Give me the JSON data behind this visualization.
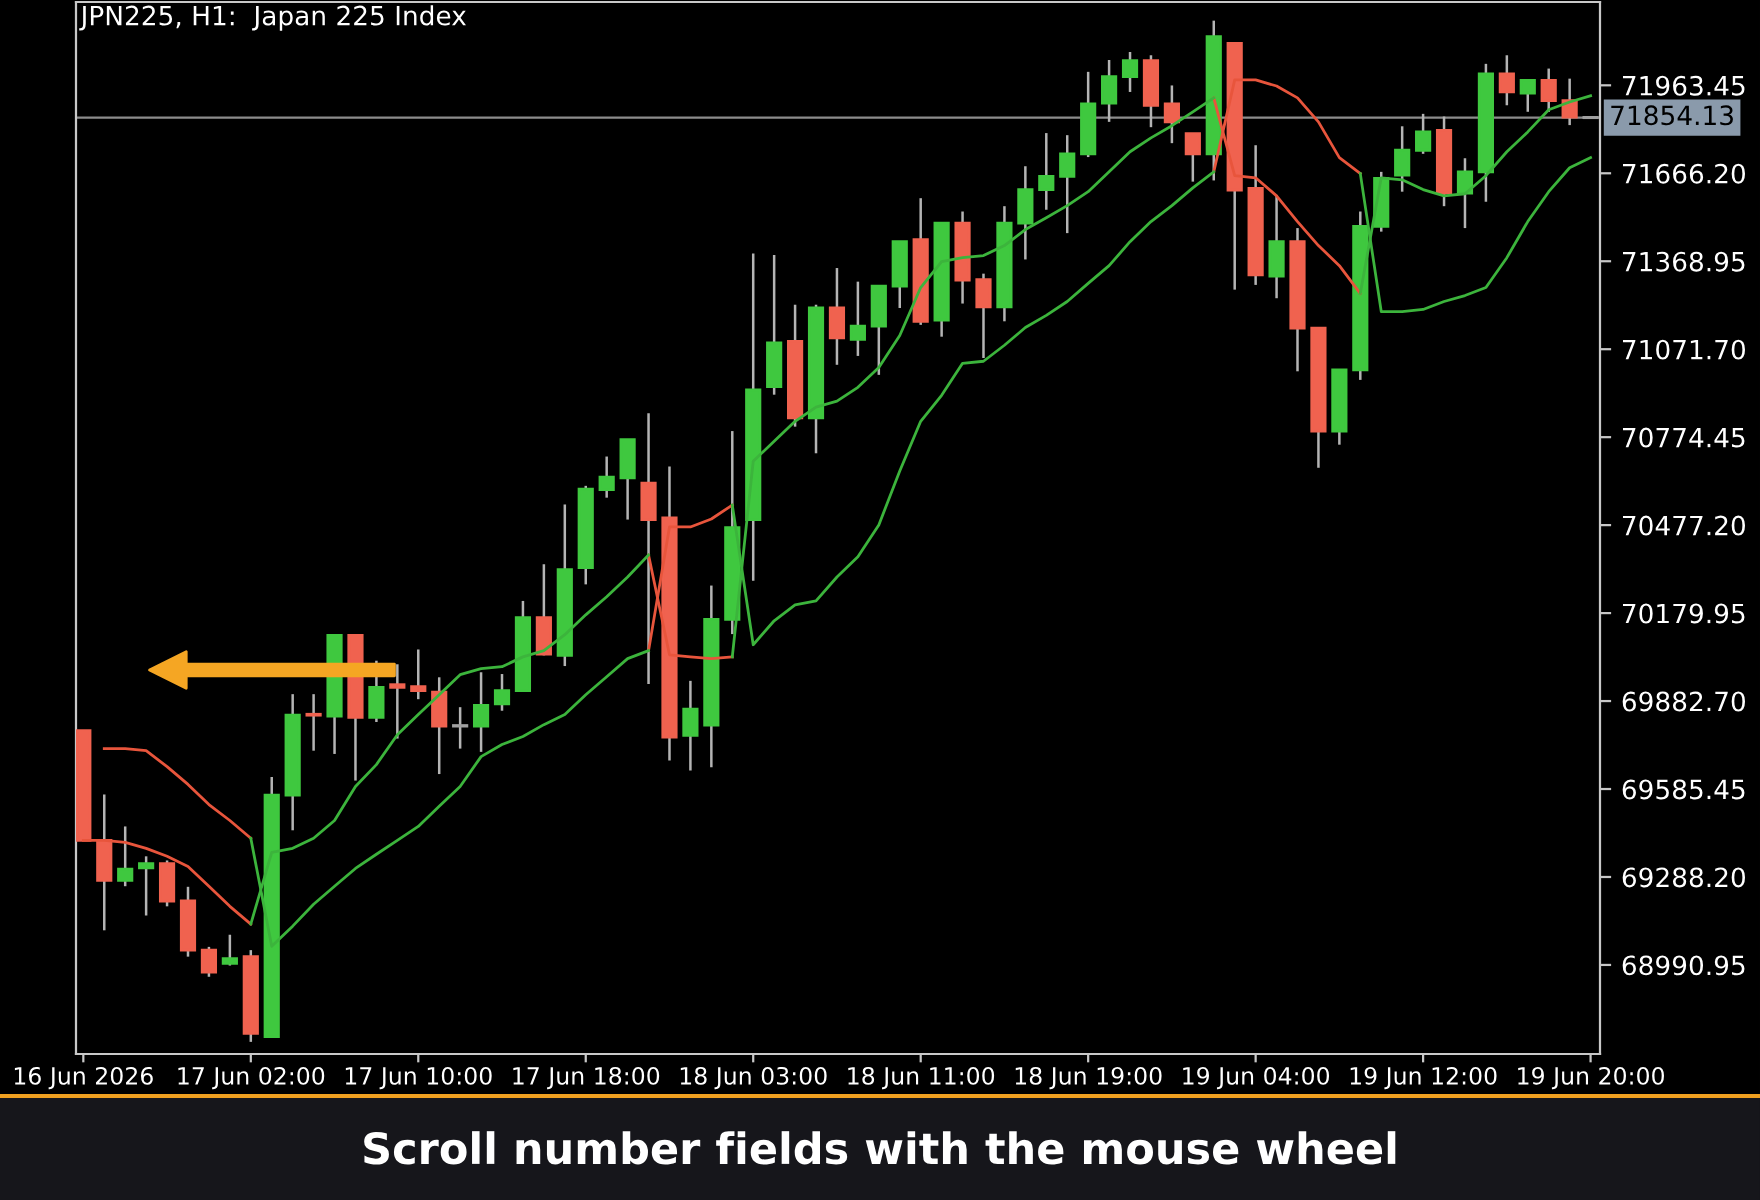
{
  "chart_data": {
    "type": "candlestick",
    "title": "JPN225, H1:  Japan 225 Index",
    "categories": [
      "16 Jun 2026",
      null,
      null,
      null,
      null,
      null,
      null,
      null,
      "17 Jun 02:00",
      null,
      null,
      null,
      null,
      null,
      null,
      null,
      "17 Jun 10:00",
      null,
      null,
      null,
      null,
      null,
      null,
      null,
      "17 Jun 18:00",
      null,
      null,
      null,
      null,
      null,
      null,
      null,
      "18 Jun 03:00",
      null,
      null,
      null,
      null,
      null,
      null,
      null,
      "18 Jun 11:00",
      null,
      null,
      null,
      null,
      null,
      null,
      null,
      "18 Jun 19:00",
      null,
      null,
      null,
      null,
      null,
      null,
      null,
      "19 Jun 04:00",
      null,
      null,
      null,
      null,
      null,
      null,
      null,
      "19 Jun 12:00",
      null,
      null,
      null,
      null,
      null,
      null,
      null,
      "19 Jun 20:00"
    ],
    "ohlc": [
      [
        69783,
        69783,
        69412,
        69412
      ],
      [
        69412,
        69567,
        69108,
        69277
      ],
      [
        69277,
        69459,
        69257,
        69315
      ],
      [
        69319,
        69358,
        69158,
        69333
      ],
      [
        69333,
        69344,
        69189,
        69207
      ],
      [
        69207,
        69255,
        69019,
        69041
      ],
      [
        69041,
        69052,
        68951,
        68967
      ],
      [
        68996,
        69093,
        68989,
        69012
      ],
      [
        69019,
        69041,
        68731,
        68760
      ],
      [
        68749,
        69626,
        68749,
        69565
      ],
      [
        69565,
        69906,
        69446,
        69835
      ],
      [
        69838,
        69906,
        69715,
        69835
      ],
      [
        69832,
        70109,
        69704,
        70105
      ],
      [
        70105,
        70109,
        69614,
        69828
      ],
      [
        69828,
        70019,
        69812,
        69929
      ],
      [
        69938,
        70007,
        69756,
        69929
      ],
      [
        69931,
        70057,
        69889,
        69918
      ],
      [
        69913,
        69963,
        69636,
        69798
      ],
      [
        69798,
        69862,
        69722,
        69800
      ],
      [
        69798,
        69980,
        69711,
        69868
      ],
      [
        69873,
        69974,
        69850,
        69918
      ],
      [
        69918,
        70221,
        69918,
        70165
      ],
      [
        70165,
        70345,
        70037,
        70041
      ],
      [
        70037,
        70547,
        70001,
        70327
      ],
      [
        70334,
        70610,
        70277,
        70599
      ],
      [
        70597,
        70709,
        70570,
        70639
      ],
      [
        70637,
        70768,
        70496,
        70766
      ],
      [
        70619,
        70855,
        69940,
        70496
      ],
      [
        70502,
        70675,
        69682,
        69761
      ],
      [
        69767,
        69951,
        69648,
        69855
      ],
      [
        69801,
        70273,
        69659,
        70159
      ],
      [
        70159,
        70795,
        70109,
        70469
      ],
      [
        70496,
        71395,
        70289,
        70934
      ],
      [
        70945,
        71390,
        70918,
        71093
      ],
      [
        71098,
        71222,
        70810,
        70840
      ],
      [
        70840,
        71222,
        70720,
        71211
      ],
      [
        71211,
        71346,
        71019,
        71110
      ],
      [
        71105,
        71300,
        71049,
        71150
      ],
      [
        71150,
        71287,
        70985,
        71285
      ],
      [
        71285,
        71437,
        71211,
        71435
      ],
      [
        71442,
        71582,
        71154,
        71166
      ],
      [
        71170,
        71500,
        71114,
        71498
      ],
      [
        71498,
        71537,
        71226,
        71305
      ],
      [
        71307,
        71327,
        71042,
        71215
      ],
      [
        71215,
        71555,
        71166,
        71498
      ],
      [
        71498,
        71690,
        71375,
        71611
      ],
      [
        71611,
        71802,
        71543,
        71656
      ],
      [
        71656,
        71795,
        71464,
        71732
      ],
      [
        71732,
        72009,
        71721,
        71901
      ],
      [
        71903,
        72049,
        71840,
        71993
      ],
      [
        71993,
        72076,
        71941,
        72047
      ],
      [
        72047,
        72065,
        71822,
        71896
      ],
      [
        71901,
        71963,
        71768,
        71840
      ],
      [
        71800,
        71802,
        71638,
        71732
      ],
      [
        71732,
        72182,
        71642,
        72128
      ],
      [
        72105,
        72107,
        71273,
        71609
      ],
      [
        71615,
        71761,
        71289,
        71323
      ],
      [
        71319,
        71593,
        71244,
        71435
      ],
      [
        71435,
        71481,
        70997,
        71143
      ],
      [
        71143,
        71145,
        70671,
        70795
      ],
      [
        70795,
        71004,
        70749,
        71002
      ],
      [
        71002,
        71537,
        70968,
        71487
      ],
      [
        71487,
        71671,
        71469,
        71649
      ],
      [
        71660,
        71825,
        71604,
        71744
      ],
      [
        71744,
        71867,
        71732,
        71806
      ],
      [
        71811,
        71858,
        71555,
        71599
      ],
      [
        71599,
        71717,
        71481,
        71671
      ],
      [
        71671,
        72036,
        71570,
        72002
      ],
      [
        72002,
        72065,
        71896,
        71941
      ],
      [
        71937,
        71982,
        71874,
        71980
      ],
      [
        71980,
        72020,
        71874,
        71912
      ],
      [
        71912,
        71986,
        71829,
        71856
      ],
      [
        71855,
        71856,
        71854.13,
        71854.13
      ]
    ],
    "colors": [
      "#f0624f",
      "#f0624f",
      "#3fc83f",
      "#3fc83f",
      "#f0624f",
      "#f0624f",
      "#f0624f",
      "#3fc83f",
      "#f0624f",
      "#3fc83f",
      "#3fc83f",
      "#f0624f",
      "#3fc83f",
      "#f0624f",
      "#3fc83f",
      "#f0624f",
      "#f0624f",
      "#f0624f",
      "#a0a0a0",
      "#3fc83f",
      "#3fc83f",
      "#3fc83f",
      "#f0624f",
      "#3fc83f",
      "#3fc83f",
      "#3fc83f",
      "#3fc83f",
      "#f0624f",
      "#f0624f",
      "#3fc83f",
      "#3fc83f",
      "#3fc83f",
      "#3fc83f",
      "#3fc83f",
      "#f0624f",
      "#3fc83f",
      "#f0624f",
      "#3fc83f",
      "#3fc83f",
      "#3fc83f",
      "#f0624f",
      "#3fc83f",
      "#f0624f",
      "#f0624f",
      "#3fc83f",
      "#3fc83f",
      "#3fc83f",
      "#3fc83f",
      "#3fc83f",
      "#3fc83f",
      "#3fc83f",
      "#f0624f",
      "#f0624f",
      "#f0624f",
      "#3fc83f",
      "#f0624f",
      "#f0624f",
      "#3fc83f",
      "#f0624f",
      "#f0624f",
      "#3fc83f",
      "#3fc83f",
      "#3fc83f",
      "#3fc83f",
      "#3fc83f",
      "#f0624f",
      "#3fc83f",
      "#3fc83f",
      "#f0624f",
      "#3fc83f",
      "#f0624f",
      "#f0624f",
      "#a0a0a0"
    ],
    "series": [
      {
        "type": "line",
        "color": "#e8553c",
        "values": [
          null,
          69722,
          69722,
          69715,
          69661,
          69601,
          69533,
          69479,
          69419,
          null,
          null,
          null,
          null,
          null,
          null,
          null,
          null,
          null,
          null,
          null,
          null,
          null,
          null,
          null,
          null,
          null,
          null,
          70053,
          70471,
          70471,
          70498,
          70545,
          null,
          null,
          null,
          null,
          null,
          null,
          null,
          null,
          null,
          null,
          null,
          null,
          null,
          null,
          null,
          null,
          null,
          null,
          null,
          null,
          null,
          null,
          71671,
          71982,
          71982,
          71961,
          71921,
          71840,
          71719,
          71665,
          null,
          null,
          null,
          null,
          null,
          null,
          null,
          null,
          null,
          null,
          null
        ]
      },
      {
        "type": "line",
        "color": "#3cb43c",
        "values": [
          null,
          null,
          null,
          null,
          null,
          null,
          null,
          null,
          69419,
          69054,
          69122,
          69196,
          69257,
          69317,
          69365,
          69412,
          69459,
          69527,
          69594,
          69695,
          69736,
          69763,
          69803,
          69837,
          69904,
          69965,
          70026,
          70053,
          null,
          null,
          null,
          70545,
          70073,
          70154,
          70208,
          70221,
          70302,
          70370,
          70478,
          70660,
          70828,
          70916,
          71024,
          71031,
          71085,
          71145,
          71186,
          71233,
          71294,
          71354,
          71435,
          71503,
          71557,
          71617,
          71671,
          null,
          null,
          null,
          null,
          null,
          null,
          71665,
          71199,
          71199,
          71206,
          71233,
          71253,
          71280,
          71381,
          71503,
          71604,
          71685,
          71719
        ]
      },
      {
        "type": "line",
        "color": "#e8553c",
        "values": [
          69412,
          69412,
          69405,
          69385,
          69358,
          69324,
          69257,
          69189,
          69129,
          null,
          null,
          null,
          null,
          null,
          null,
          null,
          null,
          null,
          null,
          null,
          null,
          null,
          null,
          null,
          null,
          null,
          null,
          70376,
          70039,
          70032,
          70026,
          70032,
          null,
          null,
          null,
          null,
          null,
          null,
          null,
          null,
          null,
          null,
          null,
          null,
          null,
          null,
          null,
          null,
          null,
          null,
          null,
          null,
          null,
          null,
          71921,
          71658,
          71651,
          71590,
          71503,
          71422,
          71354,
          71260,
          null,
          null,
          null,
          null,
          null,
          null,
          null,
          null,
          null,
          null,
          null
        ]
      },
      {
        "type": "line",
        "color": "#3cb43c",
        "values": [
          null,
          null,
          null,
          null,
          null,
          null,
          null,
          null,
          69129,
          69371,
          69385,
          69419,
          69479,
          69594,
          69668,
          69769,
          69837,
          69904,
          69972,
          69992,
          69999,
          70032,
          70053,
          70107,
          70174,
          70235,
          70302,
          70376,
          null,
          null,
          null,
          70032,
          70693,
          70761,
          70828,
          70876,
          70896,
          70943,
          71010,
          71118,
          71280,
          71368,
          71381,
          71388,
          71422,
          71476,
          71516,
          71557,
          71604,
          71671,
          71739,
          71786,
          71827,
          71874,
          71921,
          null,
          null,
          null,
          null,
          null,
          null,
          71260,
          71651,
          71644,
          71611,
          71590,
          71597,
          71658,
          71739,
          71806,
          71881,
          71907,
          71928
        ]
      }
    ],
    "ylim": [
      68690,
      72245
    ],
    "yticks": [
      68990.95,
      {
        "value": 69288.2,
        "label": "69288.20"
      },
      69585.45,
      {
        "value": 69882.7,
        "label": "69882.70"
      },
      70179.95,
      {
        "value": 70477.2,
        "label": "70477.20"
      },
      70774.45,
      {
        "value": 71071.7,
        "label": "71071.70"
      },
      71368.95,
      {
        "value": 71666.2,
        "label": "71666.20"
      },
      71963.45
    ],
    "ref_lines": [
      {
        "axis": "y",
        "value": 71854.13,
        "label": "71854.13",
        "color": "#8c8c8c"
      }
    ],
    "annotations": [
      "Scroll number fields with the mouse wheel"
    ]
  }
}
